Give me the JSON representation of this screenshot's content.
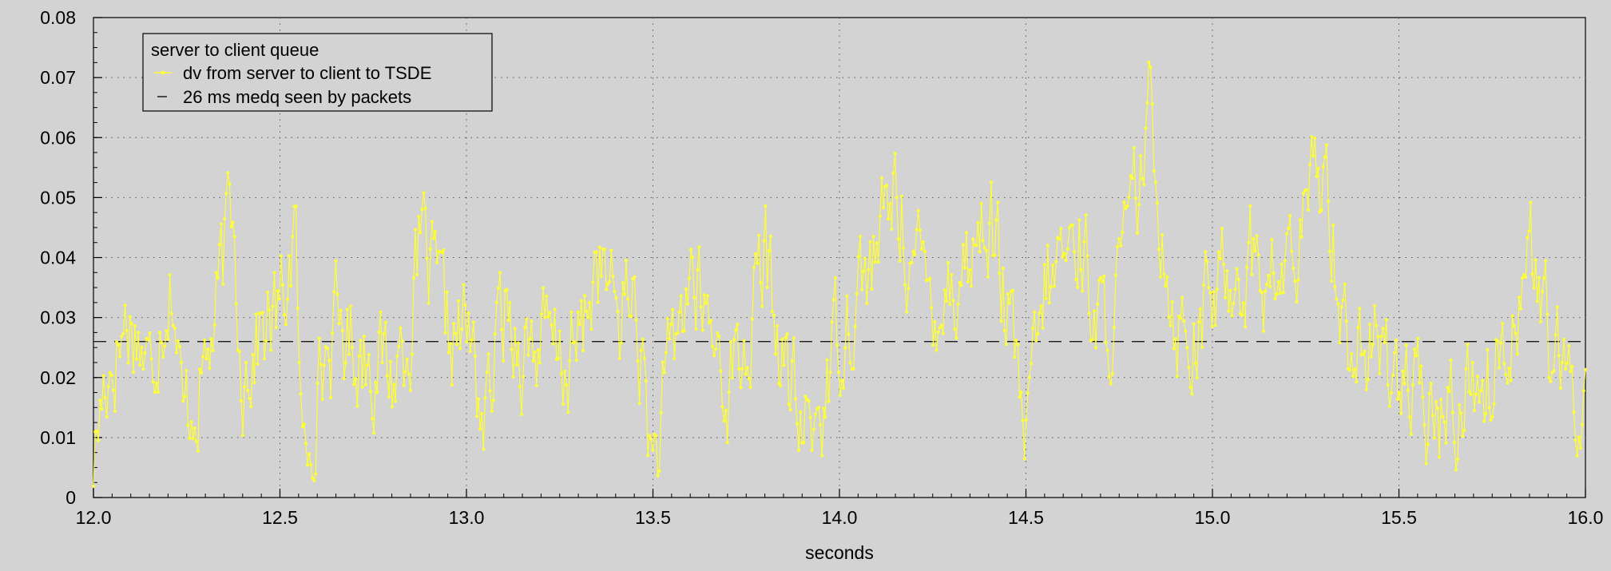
{
  "chart_data": {
    "type": "line",
    "title": "",
    "xlabel": "seconds",
    "ylabel": "",
    "xlim": [
      12.0,
      16.0
    ],
    "ylim": [
      0,
      0.08
    ],
    "grid": true,
    "legend": {
      "placement": "top-left",
      "title": "server to client queue",
      "entries": [
        {
          "label": "dv from server to client to TSDE",
          "series": "dv"
        },
        {
          "label": "26 ms medq seen by packets",
          "series": "medq"
        }
      ]
    },
    "x_ticks": [
      "12.0",
      "12.5",
      "13.0",
      "13.5",
      "14.0",
      "14.5",
      "15.0",
      "15.5",
      "16.0"
    ],
    "y_ticks": [
      "0",
      "0.01",
      "0.02",
      "0.03",
      "0.04",
      "0.05",
      "0.06",
      "0.07",
      "0.08"
    ],
    "reference_line": {
      "y": 0.026,
      "style": "dashed",
      "color": "#1a1a1a"
    },
    "series": [
      {
        "id": "dv",
        "color": "#ffff33",
        "anchors_x": [
          12.0,
          12.03,
          12.06,
          12.09,
          12.12,
          12.15,
          12.18,
          12.21,
          12.24,
          12.27,
          12.3,
          12.33,
          12.37,
          12.4,
          12.45,
          12.5,
          12.54,
          12.56,
          12.6,
          12.65,
          12.7,
          12.75,
          12.8,
          12.85,
          12.88,
          12.95,
          13.0,
          13.05,
          13.1,
          13.15,
          13.2,
          13.25,
          13.3,
          13.35,
          13.4,
          13.45,
          13.5,
          13.55,
          13.6,
          13.65,
          13.7,
          13.75,
          13.8,
          13.85,
          13.9,
          13.95,
          14.0,
          14.05,
          14.1,
          14.15,
          14.2,
          14.25,
          14.3,
          14.35,
          14.4,
          14.45,
          14.5,
          14.55,
          14.6,
          14.65,
          14.7,
          14.75,
          14.8,
          14.83,
          14.86,
          14.9,
          14.95,
          15.0,
          15.05,
          15.1,
          15.15,
          15.2,
          15.25,
          15.3,
          15.35,
          15.4,
          15.45,
          15.5,
          15.55,
          15.6,
          15.65,
          15.7,
          15.75,
          15.8,
          15.85,
          15.9,
          15.95,
          16.0
        ],
        "anchors_y": [
          0.006,
          0.02,
          0.025,
          0.03,
          0.028,
          0.02,
          0.032,
          0.038,
          0.012,
          0.018,
          0.022,
          0.03,
          0.048,
          0.022,
          0.028,
          0.03,
          0.045,
          0.005,
          0.02,
          0.028,
          0.026,
          0.024,
          0.02,
          0.03,
          0.042,
          0.026,
          0.028,
          0.012,
          0.032,
          0.026,
          0.026,
          0.022,
          0.024,
          0.04,
          0.03,
          0.034,
          0.004,
          0.022,
          0.038,
          0.028,
          0.02,
          0.024,
          0.04,
          0.022,
          0.01,
          0.015,
          0.028,
          0.036,
          0.04,
          0.052,
          0.038,
          0.034,
          0.036,
          0.04,
          0.048,
          0.03,
          0.008,
          0.034,
          0.04,
          0.044,
          0.026,
          0.035,
          0.05,
          0.062,
          0.05,
          0.03,
          0.028,
          0.033,
          0.038,
          0.04,
          0.035,
          0.038,
          0.045,
          0.058,
          0.03,
          0.024,
          0.024,
          0.022,
          0.014,
          0.012,
          0.015,
          0.02,
          0.02,
          0.03,
          0.042,
          0.026,
          0.016,
          0.018
        ],
        "n_points": 900,
        "noise": 0.008,
        "seed": 17
      }
    ]
  }
}
